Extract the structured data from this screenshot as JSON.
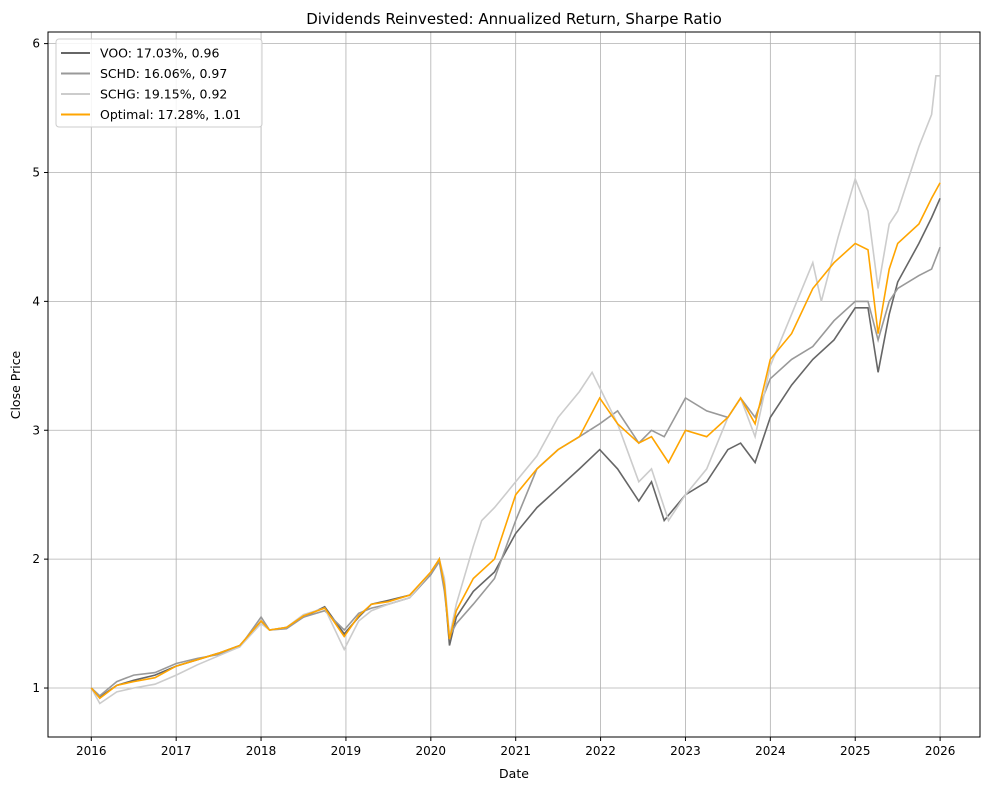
{
  "chart_data": {
    "type": "line",
    "title": "Dividends Reinvested: Annualized Return, Sharpe Ratio",
    "xlabel": "Date",
    "ylabel": "Close Price",
    "xlim": [
      2015.49,
      2026.47
    ],
    "ylim": [
      0.62,
      6.09
    ],
    "xticks": [
      2016,
      2017,
      2018,
      2019,
      2020,
      2021,
      2022,
      2023,
      2024,
      2025,
      2026
    ],
    "xtick_labels": [
      "2016",
      "2017",
      "2018",
      "2019",
      "2020",
      "2021",
      "2022",
      "2023",
      "2024",
      "2025",
      "2026"
    ],
    "yticks": [
      1,
      2,
      3,
      4,
      5,
      6
    ],
    "ytick_labels": [
      "1",
      "2",
      "3",
      "4",
      "5",
      "6"
    ],
    "grid": true,
    "legend_position": "top-left",
    "series": [
      {
        "name": "VOO: 17.03%, 0.96",
        "color": "#666666",
        "x": [
          2016,
          2016.1,
          2016.3,
          2016.5,
          2016.75,
          2017,
          2017.25,
          2017.5,
          2017.75,
          2018,
          2018.1,
          2018.3,
          2018.5,
          2018.75,
          2018.98,
          2019.15,
          2019.3,
          2019.5,
          2019.75,
          2020,
          2020.1,
          2020.16,
          2020.22,
          2020.3,
          2020.5,
          2020.75,
          2021,
          2021.25,
          2021.5,
          2021.75,
          2021.99,
          2022.2,
          2022.45,
          2022.6,
          2022.75,
          2023,
          2023.25,
          2023.5,
          2023.65,
          2023.82,
          2024,
          2024.25,
          2024.5,
          2024.75,
          2025,
          2025.15,
          2025.27,
          2025.4,
          2025.5,
          2025.75,
          2025.9,
          2026
        ],
        "y": [
          1.0,
          0.93,
          1.02,
          1.06,
          1.1,
          1.17,
          1.22,
          1.27,
          1.33,
          1.52,
          1.45,
          1.47,
          1.55,
          1.63,
          1.42,
          1.55,
          1.65,
          1.68,
          1.72,
          1.88,
          2.0,
          1.8,
          1.33,
          1.55,
          1.75,
          1.9,
          2.2,
          2.4,
          2.55,
          2.7,
          2.85,
          2.7,
          2.45,
          2.6,
          2.3,
          2.5,
          2.6,
          2.85,
          2.9,
          2.75,
          3.1,
          3.35,
          3.55,
          3.7,
          3.95,
          3.95,
          3.45,
          3.9,
          4.15,
          4.45,
          4.65,
          4.8
        ]
      },
      {
        "name": "SCHD: 16.06%, 0.97",
        "color": "#999999",
        "x": [
          2016,
          2016.1,
          2016.3,
          2016.5,
          2016.75,
          2017,
          2017.25,
          2017.5,
          2017.75,
          2018,
          2018.1,
          2018.3,
          2018.5,
          2018.75,
          2018.98,
          2019.15,
          2019.3,
          2019.5,
          2019.75,
          2020,
          2020.1,
          2020.16,
          2020.22,
          2020.3,
          2020.5,
          2020.75,
          2021,
          2021.25,
          2021.5,
          2021.75,
          2021.99,
          2022.2,
          2022.45,
          2022.6,
          2022.75,
          2023,
          2023.25,
          2023.5,
          2023.65,
          2023.82,
          2024,
          2024.25,
          2024.5,
          2024.75,
          2025,
          2025.15,
          2025.27,
          2025.4,
          2025.5,
          2025.75,
          2025.9,
          2026
        ],
        "y": [
          1.0,
          0.94,
          1.05,
          1.1,
          1.12,
          1.19,
          1.23,
          1.26,
          1.32,
          1.55,
          1.45,
          1.46,
          1.55,
          1.6,
          1.45,
          1.58,
          1.62,
          1.65,
          1.7,
          1.88,
          1.98,
          1.75,
          1.4,
          1.5,
          1.65,
          1.85,
          2.3,
          2.7,
          2.85,
          2.95,
          3.05,
          3.15,
          2.9,
          3.0,
          2.95,
          3.25,
          3.15,
          3.1,
          3.25,
          3.1,
          3.4,
          3.55,
          3.65,
          3.85,
          4.0,
          4.0,
          3.7,
          4.0,
          4.1,
          4.2,
          4.25,
          4.42
        ]
      },
      {
        "name": "SCHG: 19.15%, 0.92",
        "color": "#cccccc",
        "x": [
          2016,
          2016.1,
          2016.3,
          2016.5,
          2016.75,
          2017,
          2017.25,
          2017.5,
          2017.75,
          2018,
          2018.1,
          2018.3,
          2018.5,
          2018.75,
          2018.98,
          2019.15,
          2019.3,
          2019.5,
          2019.75,
          2020,
          2020.1,
          2020.16,
          2020.22,
          2020.3,
          2020.5,
          2020.6,
          2020.75,
          2021,
          2021.25,
          2021.5,
          2021.75,
          2021.9,
          2022.2,
          2022.45,
          2022.6,
          2022.8,
          2023,
          2023.25,
          2023.5,
          2023.65,
          2023.82,
          2024,
          2024.25,
          2024.5,
          2024.6,
          2024.8,
          2025,
          2025.15,
          2025.27,
          2025.4,
          2025.5,
          2025.75,
          2025.9,
          2025.95,
          2026
        ],
        "y": [
          1.0,
          0.88,
          0.97,
          1.0,
          1.03,
          1.1,
          1.18,
          1.25,
          1.32,
          1.5,
          1.45,
          1.47,
          1.57,
          1.62,
          1.3,
          1.52,
          1.6,
          1.65,
          1.7,
          1.9,
          2.0,
          1.85,
          1.4,
          1.65,
          2.1,
          2.3,
          2.4,
          2.6,
          2.8,
          3.1,
          3.3,
          3.45,
          3.05,
          2.6,
          2.7,
          2.3,
          2.5,
          2.7,
          3.1,
          3.25,
          2.95,
          3.5,
          3.9,
          4.3,
          4.0,
          4.5,
          4.95,
          4.7,
          4.1,
          4.6,
          4.7,
          5.2,
          5.45,
          5.75,
          5.75
        ]
      },
      {
        "name": "Optimal: 17.28%, 1.01",
        "color": "#ffa500",
        "x": [
          2016,
          2016.1,
          2016.3,
          2016.5,
          2016.75,
          2017,
          2017.25,
          2017.5,
          2017.75,
          2018,
          2018.1,
          2018.3,
          2018.5,
          2018.75,
          2018.98,
          2019.15,
          2019.3,
          2019.5,
          2019.75,
          2020,
          2020.1,
          2020.16,
          2020.22,
          2020.3,
          2020.5,
          2020.75,
          2021,
          2021.25,
          2021.5,
          2021.75,
          2021.99,
          2022.2,
          2022.45,
          2022.6,
          2022.8,
          2023,
          2023.25,
          2023.5,
          2023.65,
          2023.82,
          2024,
          2024.25,
          2024.5,
          2024.75,
          2025,
          2025.15,
          2025.27,
          2025.4,
          2025.5,
          2025.75,
          2025.9,
          2026
        ],
        "y": [
          1.0,
          0.92,
          1.02,
          1.05,
          1.08,
          1.17,
          1.22,
          1.27,
          1.33,
          1.52,
          1.45,
          1.47,
          1.56,
          1.62,
          1.4,
          1.56,
          1.65,
          1.67,
          1.72,
          1.9,
          2.0,
          1.8,
          1.38,
          1.6,
          1.85,
          2.0,
          2.5,
          2.7,
          2.85,
          2.95,
          3.25,
          3.05,
          2.9,
          2.95,
          2.75,
          3.0,
          2.95,
          3.1,
          3.25,
          3.05,
          3.55,
          3.75,
          4.1,
          4.3,
          4.45,
          4.4,
          3.75,
          4.25,
          4.45,
          4.6,
          4.8,
          4.92
        ]
      }
    ]
  }
}
